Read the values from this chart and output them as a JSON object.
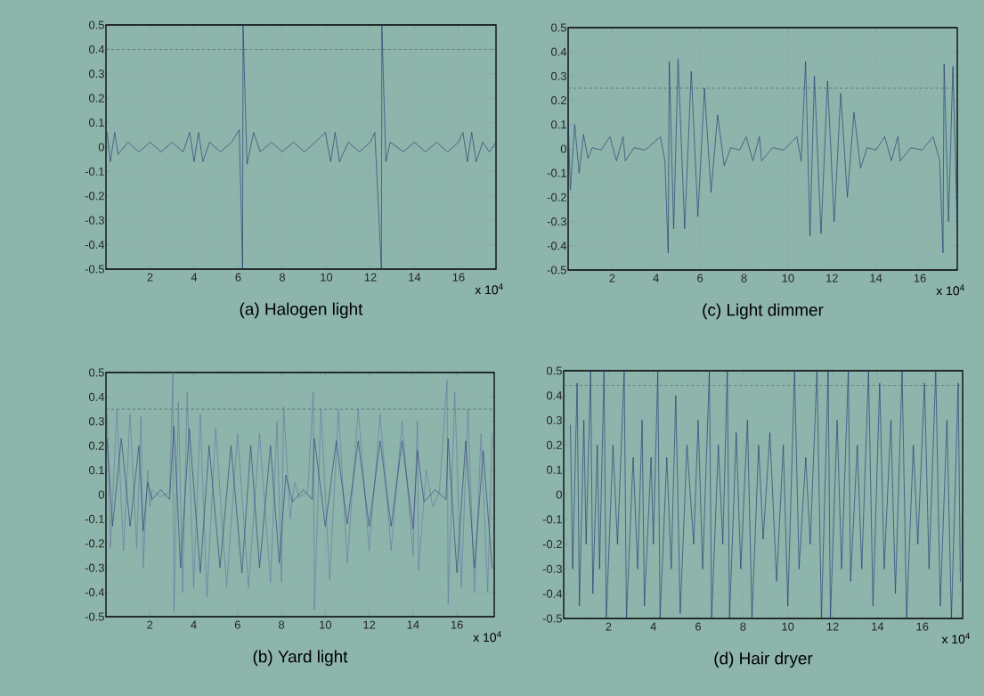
{
  "chart_data": [
    {
      "type": "line",
      "title": "(a) Halogen light",
      "xlim": [
        0,
        17.7
      ],
      "ylim": [
        -0.5,
        0.5
      ],
      "xticks": [
        2,
        4,
        6,
        8,
        10,
        12,
        14,
        16
      ],
      "yticks": [
        -0.5,
        -0.4,
        -0.3,
        -0.2,
        -0.1,
        0,
        0.1,
        0.2,
        0.3,
        0.4,
        0.5
      ],
      "grid": true,
      "annotations": [
        "x 10$^{4}$"
      ],
      "ref_lines": [
        {
          "axis": "y",
          "value": 0.4,
          "line_style": "dashed",
          "color": "#44504e"
        }
      ],
      "series": [
        {
          "color": "#1f2d6e",
          "x": [
            0.05,
            0.2,
            0.4,
            0.55,
            1.0,
            1.5,
            2.0,
            2.5,
            3.0,
            3.5,
            3.8,
            4.0,
            4.2,
            4.4,
            4.7,
            5.2,
            5.7,
            6.05,
            6.2,
            6.22,
            6.4,
            6.7,
            7.0,
            7.5,
            8.0,
            8.5,
            9.0,
            9.5,
            9.95,
            10.2,
            10.4,
            10.6,
            11.0,
            11.5,
            12.0,
            12.2,
            12.5,
            12.52,
            12.7,
            12.9,
            13.5,
            14.0,
            14.5,
            15.0,
            15.5,
            16.0,
            16.2,
            16.4,
            16.6,
            16.8,
            17.1,
            17.4,
            17.7
          ],
          "values": [
            0.06,
            -0.06,
            0.06,
            -0.03,
            0.02,
            -0.02,
            0.02,
            -0.02,
            0.02,
            -0.02,
            0.06,
            -0.06,
            0.06,
            -0.06,
            0.02,
            -0.02,
            0.02,
            0.07,
            -0.5,
            0.5,
            -0.07,
            0.06,
            -0.02,
            0.02,
            -0.02,
            0.02,
            -0.02,
            0.02,
            0.06,
            -0.06,
            0.06,
            -0.06,
            0.02,
            -0.02,
            0.02,
            0.06,
            -0.5,
            0.5,
            -0.06,
            0.02,
            -0.02,
            0.02,
            -0.02,
            0.02,
            -0.02,
            0.02,
            0.06,
            -0.06,
            0.06,
            -0.06,
            0.02,
            -0.02,
            0.02
          ]
        }
      ]
    },
    {
      "type": "line",
      "title": "(c) Light dimmer",
      "xlim": [
        0,
        17.7
      ],
      "ylim": [
        -0.5,
        0.5
      ],
      "xticks": [
        2,
        4,
        6,
        8,
        10,
        12,
        14,
        16
      ],
      "yticks": [
        -0.5,
        -0.4,
        -0.3,
        -0.2,
        -0.1,
        0,
        0.1,
        0.2,
        0.3,
        0.4,
        0.5
      ],
      "grid": true,
      "annotations": [
        "x 10$^{4}$"
      ],
      "ref_lines": [
        {
          "axis": "y",
          "value": 0.25,
          "line_style": "dashed",
          "color": "#44504e"
        }
      ],
      "series": [
        {
          "color": "#1f2d6e",
          "x": [
            0,
            0.1,
            0.3,
            0.5,
            0.7,
            0.9,
            1.1,
            1.5,
            1.9,
            2.2,
            2.5,
            2.6,
            3.0,
            3.5,
            4.2,
            4.4,
            4.55,
            4.6,
            4.8,
            5.0,
            5.3,
            5.6,
            5.9,
            6.2,
            6.5,
            6.8,
            7.1,
            7.4,
            7.8,
            8.1,
            8.4,
            8.7,
            8.8,
            9.3,
            9.8,
            10.4,
            10.6,
            10.8,
            11.0,
            11.2,
            11.5,
            11.8,
            12.1,
            12.4,
            12.7,
            13.0,
            13.3,
            13.6,
            14.0,
            14.4,
            14.7,
            15.0,
            15.1,
            15.6,
            16.1,
            16.6,
            16.9,
            17.05,
            17.1,
            17.3,
            17.5,
            17.7
          ],
          "values": [
            0.13,
            -0.17,
            0.1,
            -0.1,
            0.06,
            -0.04,
            0.005,
            -0.005,
            0.05,
            -0.05,
            0.05,
            -0.05,
            0.005,
            -0.005,
            0.05,
            -0.05,
            -0.43,
            0.36,
            -0.33,
            0.37,
            -0.33,
            0.32,
            -0.28,
            0.25,
            -0.18,
            0.14,
            -0.07,
            0.005,
            -0.005,
            0.05,
            -0.05,
            0.05,
            -0.05,
            0.005,
            -0.005,
            0.05,
            -0.05,
            0.36,
            -0.36,
            0.3,
            -0.35,
            0.28,
            -0.3,
            0.23,
            -0.2,
            0.15,
            -0.08,
            0.005,
            -0.005,
            0.05,
            -0.05,
            0.05,
            -0.05,
            0.005,
            -0.005,
            0.05,
            -0.05,
            -0.43,
            0.35,
            -0.3,
            0.34,
            -0.33
          ]
        }
      ]
    },
    {
      "type": "line",
      "title": "(b) Yard light",
      "xlim": [
        0,
        17.7
      ],
      "ylim": [
        -0.5,
        0.5
      ],
      "xticks": [
        2,
        4,
        6,
        8,
        10,
        12,
        14,
        16
      ],
      "yticks": [
        -0.5,
        -0.4,
        -0.3,
        -0.2,
        -0.1,
        0,
        0.1,
        0.2,
        0.3,
        0.4,
        0.5
      ],
      "grid": true,
      "annotations": [
        "x 10$^{4}$"
      ],
      "ref_lines": [
        {
          "axis": "y",
          "value": 0.35,
          "line_style": "dashed",
          "color": "#44504e"
        }
      ],
      "series": [
        {
          "color": "#6474a4",
          "x": [
            0.05,
            0.2,
            0.5,
            0.8,
            1.1,
            1.4,
            1.6,
            1.7,
            1.9,
            2.0,
            2.1,
            2.5,
            2.9,
            3.05,
            3.1,
            3.3,
            3.5,
            3.7,
            4.0,
            4.3,
            4.6,
            5.0,
            5.5,
            6.0,
            6.5,
            7.0,
            7.5,
            7.8,
            8.0,
            8.1,
            8.4,
            8.6,
            8.8,
            9.2,
            9.45,
            9.5,
            9.8,
            10.2,
            10.6,
            11.0,
            11.5,
            12.0,
            12.5,
            13.0,
            13.5,
            14.0,
            14.2,
            14.25,
            14.6,
            14.9,
            15.2,
            15.55,
            15.6,
            15.9,
            16.2,
            16.5,
            16.8,
            17.1,
            17.4,
            17.6
          ],
          "values": [
            0.33,
            -0.22,
            0.35,
            -0.23,
            0.33,
            -0.22,
            0.32,
            -0.3,
            0.1,
            -0.05,
            0.02,
            -0.01,
            0.01,
            0.5,
            -0.48,
            0.38,
            -0.4,
            0.42,
            -0.38,
            0.33,
            -0.42,
            0.27,
            -0.38,
            0.25,
            -0.38,
            0.25,
            -0.36,
            0.3,
            -0.36,
            0.36,
            -0.1,
            0.05,
            -0.01,
            0.01,
            0.42,
            -0.47,
            0.35,
            -0.35,
            0.35,
            -0.28,
            0.35,
            -0.23,
            0.33,
            -0.23,
            0.3,
            -0.25,
            0.3,
            -0.31,
            0.1,
            -0.05,
            0.01,
            0.47,
            -0.45,
            0.42,
            -0.38,
            0.35,
            -0.4,
            0.25,
            -0.4,
            0.25
          ]
        },
        {
          "color": "#2a3878",
          "x": [
            0.05,
            0.3,
            0.7,
            1.1,
            1.5,
            1.7,
            1.9,
            2.1,
            2.5,
            2.9,
            3.1,
            3.4,
            3.8,
            4.3,
            4.7,
            5.2,
            5.7,
            6.2,
            6.6,
            7.0,
            7.5,
            7.9,
            8.2,
            8.5,
            9.0,
            9.4,
            9.5,
            10.0,
            10.5,
            11.0,
            11.5,
            12.0,
            12.5,
            13.0,
            13.5,
            14.0,
            14.2,
            14.5,
            15.0,
            15.5,
            15.6,
            16.0,
            16.4,
            16.8,
            17.2,
            17.6
          ],
          "values": [
            0.23,
            -0.13,
            0.23,
            -0.13,
            0.2,
            -0.15,
            0.05,
            -0.02,
            0.02,
            -0.02,
            0.28,
            -0.3,
            0.27,
            -0.32,
            0.2,
            -0.3,
            0.2,
            -0.32,
            0.2,
            -0.3,
            0.2,
            -0.28,
            0.08,
            -0.03,
            0.02,
            -0.02,
            0.23,
            -0.13,
            0.22,
            -0.12,
            0.22,
            -0.13,
            0.22,
            -0.13,
            0.22,
            -0.14,
            0.18,
            -0.03,
            0.02,
            -0.02,
            0.23,
            -0.32,
            0.22,
            -0.3,
            0.18,
            -0.3
          ]
        }
      ]
    },
    {
      "type": "line",
      "title": "(d) Hair dryer",
      "xlim": [
        0,
        17.8
      ],
      "ylim": [
        -0.5,
        0.5
      ],
      "xticks": [
        2,
        4,
        6,
        8,
        10,
        12,
        14,
        16
      ],
      "yticks": [
        -0.5,
        -0.4,
        -0.3,
        -0.2,
        -0.1,
        0,
        0.1,
        0.2,
        0.3,
        0.4,
        0.5
      ],
      "grid": true,
      "annotations": [
        "x 10$^{4}$"
      ],
      "ref_lines": [
        {
          "axis": "y",
          "value": 0.44,
          "line_style": "dashed",
          "color": "#44504e"
        }
      ],
      "series": [
        {
          "color": "#1f2d6e",
          "x": [
            0.3,
            0.4,
            0.6,
            0.7,
            0.9,
            1.0,
            1.2,
            1.3,
            1.5,
            1.6,
            1.8,
            1.9,
            2.2,
            2.4,
            2.7,
            2.8,
            3.1,
            3.3,
            3.5,
            3.6,
            3.9,
            4.0,
            4.2,
            4.3,
            4.6,
            4.8,
            5.0,
            5.2,
            5.5,
            5.8,
            6.0,
            6.2,
            6.5,
            6.6,
            6.9,
            7.1,
            7.3,
            7.4,
            7.7,
            7.9,
            8.2,
            8.4,
            8.7,
            8.9,
            9.2,
            9.5,
            9.8,
            10.0,
            10.3,
            10.5,
            10.8,
            11.0,
            11.3,
            11.5,
            11.8,
            11.9,
            12.2,
            12.4,
            12.7,
            12.8,
            13.1,
            13.3,
            13.6,
            13.8,
            14.1,
            14.3,
            14.6,
            14.8,
            15.1,
            15.3,
            15.6,
            15.8,
            16.1,
            16.3,
            16.6,
            16.8,
            17.1,
            17.3,
            17.6,
            17.7
          ],
          "values": [
            0.28,
            -0.3,
            0.45,
            -0.45,
            0.3,
            -0.2,
            0.5,
            -0.4,
            0.2,
            -0.3,
            0.5,
            -0.5,
            0.2,
            -0.2,
            0.5,
            -0.5,
            0.15,
            -0.3,
            0.3,
            -0.45,
            0.15,
            -0.2,
            0.5,
            -0.5,
            0.15,
            -0.3,
            0.4,
            -0.48,
            0.2,
            -0.2,
            0.3,
            -0.3,
            0.5,
            -0.5,
            0.2,
            -0.2,
            0.5,
            -0.5,
            0.25,
            -0.3,
            0.3,
            -0.5,
            0.2,
            -0.18,
            0.25,
            -0.35,
            0.2,
            -0.45,
            0.5,
            -0.3,
            0.15,
            -0.2,
            0.5,
            -0.5,
            0.5,
            -0.5,
            0.3,
            -0.3,
            0.5,
            -0.35,
            0.2,
            -0.3,
            0.5,
            -0.45,
            0.45,
            -0.3,
            0.3,
            -0.4,
            0.5,
            -0.5,
            0.2,
            -0.2,
            0.45,
            -0.3,
            0.5,
            -0.45,
            0.3,
            -0.5,
            0.45,
            -0.35
          ]
        }
      ]
    }
  ]
}
